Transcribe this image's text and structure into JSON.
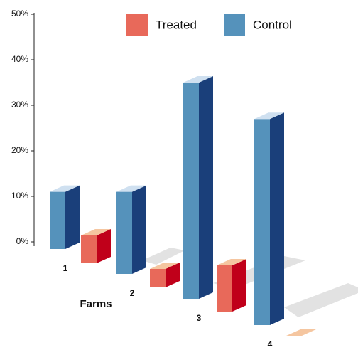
{
  "chart_data": {
    "type": "bar3d",
    "categories": [
      "1",
      "2",
      "3",
      "4"
    ],
    "x_label": "Farms",
    "series": [
      {
        "name": "Treated",
        "color": "#e8695a",
        "side_color": "#c0001a",
        "top_color": "#f5c6a0",
        "values": [
          3,
          2,
          5,
          0
        ]
      },
      {
        "name": "Control",
        "color": "#5592bb",
        "side_color": "#1a3f7a",
        "top_color": "#cfe0f0",
        "values": [
          11,
          11,
          35,
          27
        ]
      }
    ],
    "ylim": [
      0,
      50
    ],
    "yticks": [
      {
        "value": 0,
        "label": "0%"
      },
      {
        "value": 10,
        "label": "10%"
      },
      {
        "value": 20,
        "label": "20%"
      },
      {
        "value": 30,
        "label": "30%"
      },
      {
        "value": 40,
        "label": "40%"
      },
      {
        "value": 50,
        "label": "50%"
      }
    ],
    "legend": "top"
  }
}
